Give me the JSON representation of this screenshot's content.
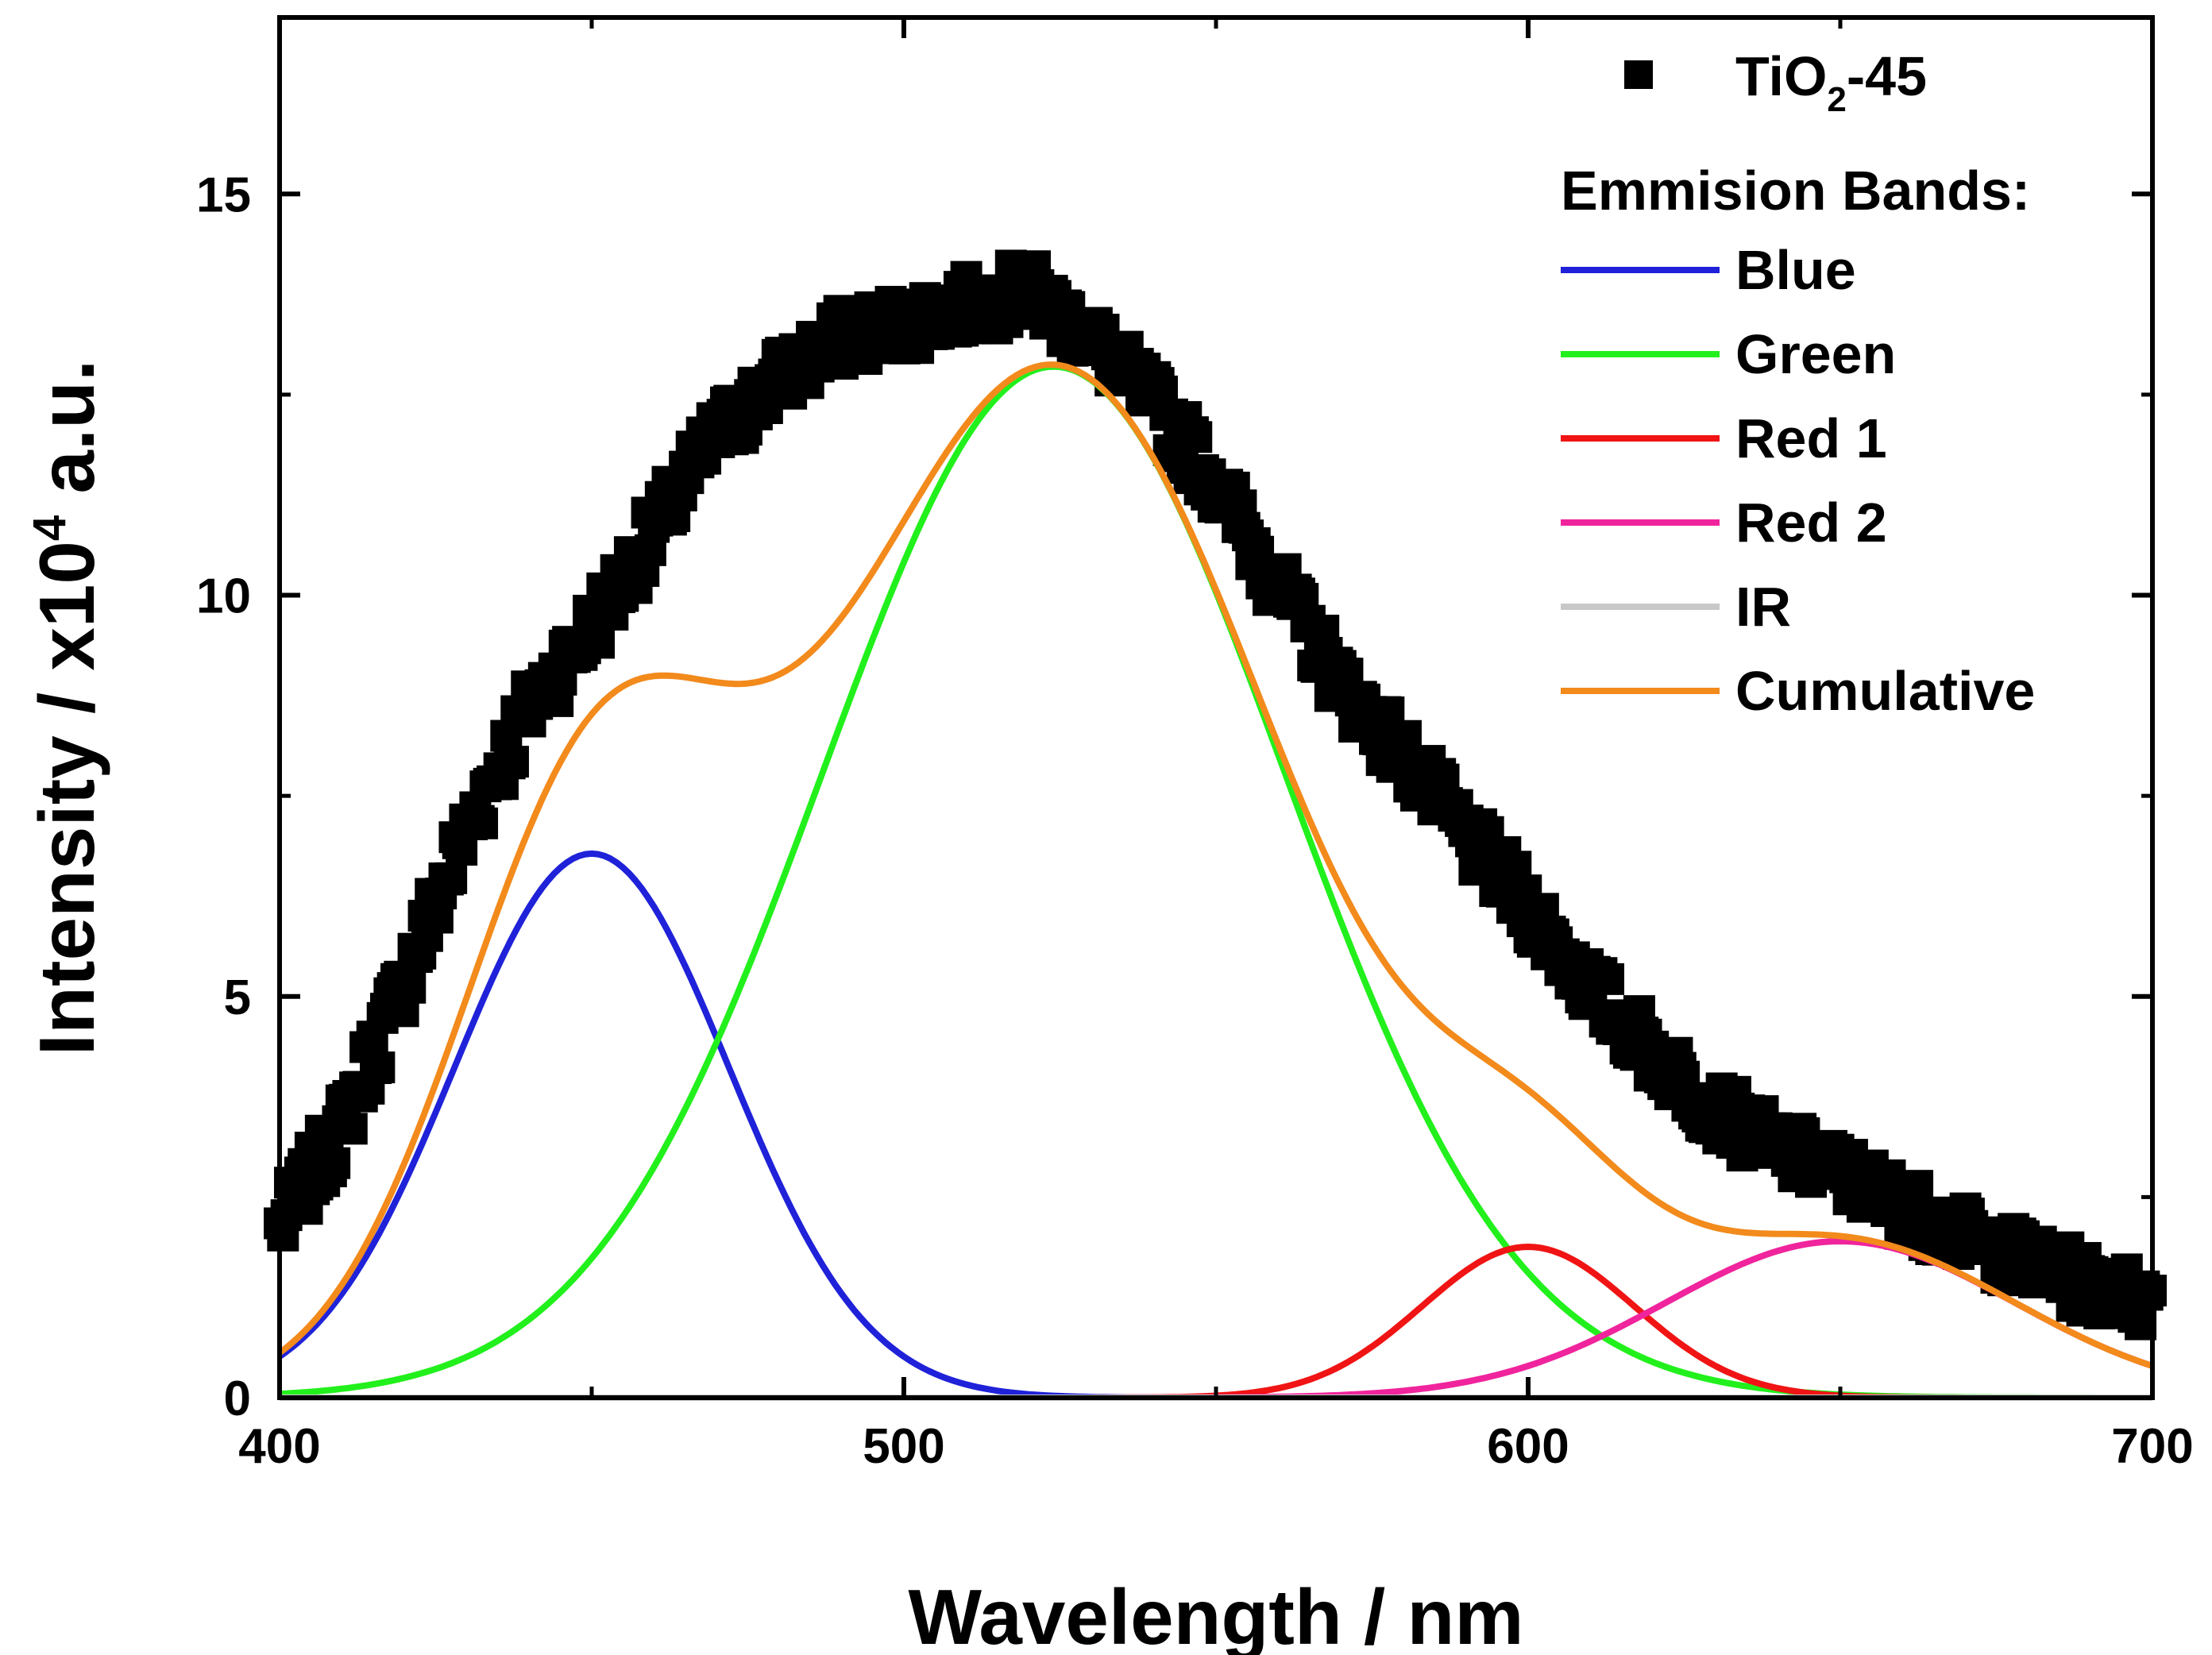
{
  "chart_data": {
    "type": "line",
    "title": "",
    "xlabel": "Wavelength / nm",
    "ylabel_parts": [
      "Intensity / x10",
      "4",
      " a.u."
    ],
    "xlim": [
      400,
      700
    ],
    "ylim": [
      0,
      17.2
    ],
    "x_ticks": [
      400,
      500,
      600,
      700
    ],
    "y_ticks": [
      0,
      5,
      10,
      15
    ],
    "grid": false,
    "legend": {
      "placement": "top-right",
      "data_label_parts": [
        "TiO",
        "2",
        "-45"
      ],
      "bands_header": "Emmision Bands:",
      "entries": [
        {
          "name": "Blue",
          "color": "#1f22d8"
        },
        {
          "name": "Green",
          "color": "#22f01c"
        },
        {
          "name": "Red 1",
          "color": "#f01414"
        },
        {
          "name": "Red 2",
          "color": "#f0249c"
        },
        {
          "name": "IR",
          "color": "#c8c8c8"
        },
        {
          "name": "Cumulative",
          "color": "#f28a1c"
        }
      ]
    },
    "measured": {
      "name": "TiO2-45",
      "marker": "square",
      "color": "#000000",
      "x": [
        400,
        410,
        420,
        430,
        440,
        450,
        460,
        470,
        480,
        490,
        500,
        510,
        520,
        530,
        540,
        550,
        560,
        570,
        580,
        590,
        600,
        610,
        620,
        630,
        640,
        650,
        660,
        670,
        680,
        690,
        700
      ],
      "y": [
        2.1,
        3.4,
        5.2,
        7.1,
        8.6,
        9.6,
        10.8,
        12.0,
        12.7,
        13.2,
        13.4,
        13.6,
        13.8,
        13.2,
        12.4,
        11.4,
        10.1,
        8.9,
        8.0,
        7.0,
        6.1,
        5.1,
        4.3,
        3.6,
        3.1,
        2.8,
        2.4,
        2.0,
        1.7,
        1.4,
        1.2
      ]
    },
    "series": [
      {
        "name": "Blue",
        "color": "#1f22d8",
        "gaussian": {
          "amplitude": 6.78,
          "center": 450,
          "sigma": 22
        }
      },
      {
        "name": "Green",
        "color": "#22f01c",
        "gaussian": {
          "amplitude": 12.85,
          "center": 524,
          "sigma": 37
        }
      },
      {
        "name": "Red 1",
        "color": "#f01414",
        "gaussian": {
          "amplitude": 1.88,
          "center": 600,
          "sigma": 17
        }
      },
      {
        "name": "Red 2",
        "color": "#f0249c",
        "gaussian": {
          "amplitude": 1.95,
          "center": 650,
          "sigma": 28
        }
      },
      {
        "name": "IR",
        "color": "#c8c8c8",
        "gaussian": {
          "amplitude": 0.0,
          "center": 700,
          "sigma": 30
        }
      },
      {
        "name": "Cumulative",
        "color": "#f28a1c",
        "sum_of": [
          "Blue",
          "Green",
          "Red 1",
          "Red 2",
          "IR"
        ]
      }
    ]
  }
}
